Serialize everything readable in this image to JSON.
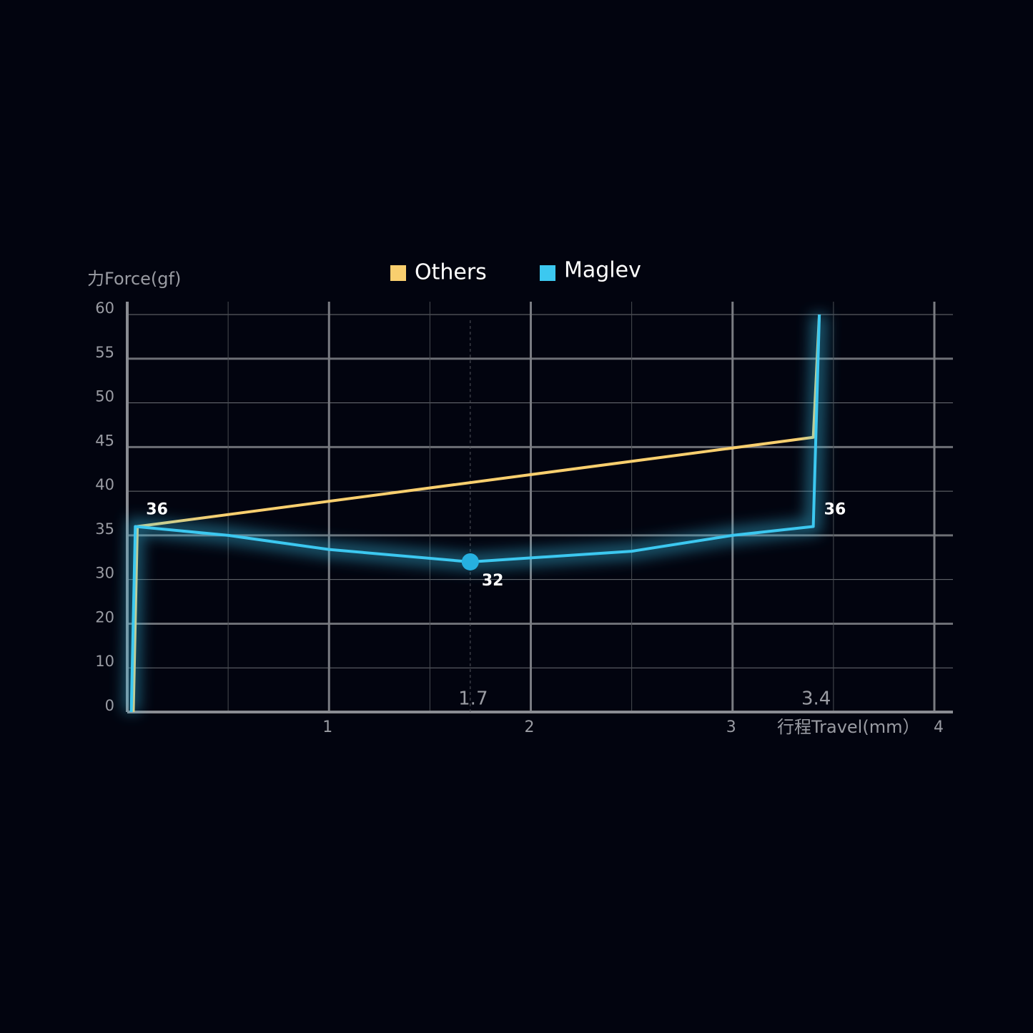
{
  "chart_data": {
    "type": "line",
    "y_label": "力Force(gf)",
    "x_label": "行程Travel(mm）",
    "xlim": [
      0,
      4
    ],
    "xticks": [
      1,
      2,
      3,
      4
    ],
    "minor_xticks": [
      0.5,
      1.5,
      2.5,
      3.5
    ],
    "ylim": [
      0,
      60
    ],
    "yticks": [
      0,
      10,
      20,
      30,
      35,
      40,
      45,
      50,
      55,
      60
    ],
    "grid": true,
    "x_markers": [
      1.7,
      3.4
    ],
    "series": [
      {
        "name": "Others",
        "color": "#f9cf6e",
        "x": [
          0.03,
          0.05,
          3.4,
          3.43
        ],
        "values": [
          0,
          36,
          46.1,
          60
        ]
      },
      {
        "name": "Maglev",
        "color": "#3cc8f0",
        "x": [
          0.02,
          0.04,
          0.5,
          1.0,
          1.7,
          2.5,
          3.0,
          3.4,
          3.43
        ],
        "values": [
          0,
          36,
          35,
          33.4,
          32,
          33.2,
          35,
          36,
          60
        ]
      }
    ],
    "annotations": [
      {
        "x": 0.04,
        "value": 36
      },
      {
        "x": 1.7,
        "value": 32
      },
      {
        "x": 3.4,
        "value": 36
      }
    ]
  }
}
